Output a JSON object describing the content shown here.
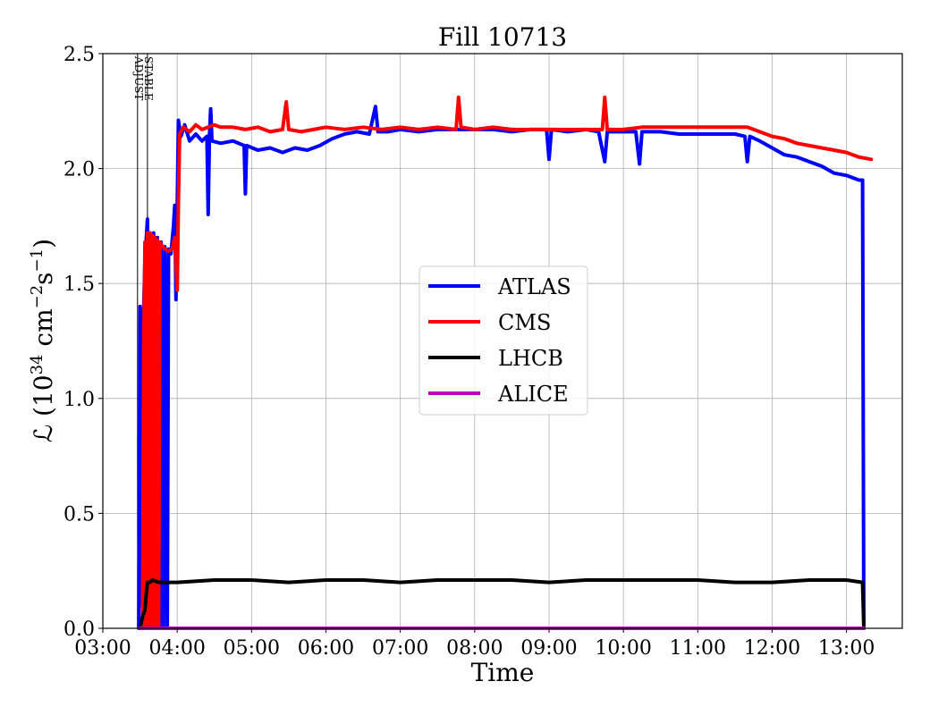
{
  "chart_data": {
    "type": "line",
    "title": "Fill 10713",
    "xlabel": "Time",
    "ylabel": "ℒ (10³⁴ cm⁻²s⁻¹)",
    "ylabel_parts": {
      "main": "ℒ (10",
      "exp1": "34",
      "mid": " cm",
      "exp2": "−2",
      "mid2": "s",
      "exp3": "−1",
      "end": ")"
    },
    "xlim": [
      "03:00",
      "13:45"
    ],
    "ylim": [
      0.0,
      2.5
    ],
    "x_ticks": [
      "03:00",
      "04:00",
      "05:00",
      "06:00",
      "07:00",
      "08:00",
      "09:00",
      "10:00",
      "11:00",
      "12:00",
      "13:00"
    ],
    "y_ticks": [
      "0.0",
      "0.5",
      "1.0",
      "1.5",
      "2.0",
      "2.5"
    ],
    "grid": true,
    "legend_position": "center-right",
    "annotations": [
      {
        "label": "ADJUST",
        "x": "03:28"
      },
      {
        "label": "STABLE",
        "x": "03:36"
      }
    ],
    "series": [
      {
        "name": "ATLAS",
        "color": "#0000ff",
        "points": [
          [
            "03:29",
            0.0
          ],
          [
            "03:30",
            1.4
          ],
          [
            "03:31",
            0.1
          ],
          [
            "03:32",
            1.2
          ],
          [
            "03:34",
            1.6
          ],
          [
            "03:36",
            1.78
          ],
          [
            "03:37",
            0.0
          ],
          [
            "03:38",
            1.72
          ],
          [
            "03:40",
            0.0
          ],
          [
            "03:41",
            1.72
          ],
          [
            "03:43",
            0.0
          ],
          [
            "03:44",
            1.7
          ],
          [
            "03:46",
            0.0
          ],
          [
            "03:47",
            1.68
          ],
          [
            "03:49",
            0.0
          ],
          [
            "03:50",
            1.66
          ],
          [
            "03:52",
            0.0
          ],
          [
            "03:53",
            1.65
          ],
          [
            "03:55",
            1.63
          ],
          [
            "03:57",
            1.75
          ],
          [
            "03:58",
            1.84
          ],
          [
            "03:59",
            1.43
          ],
          [
            "04:01",
            2.21
          ],
          [
            "04:03",
            2.14
          ],
          [
            "04:06",
            2.19
          ],
          [
            "04:10",
            2.12
          ],
          [
            "04:15",
            2.15
          ],
          [
            "04:20",
            2.12
          ],
          [
            "04:24",
            2.14
          ],
          [
            "04:25",
            1.8
          ],
          [
            "04:26",
            2.14
          ],
          [
            "04:27",
            2.26
          ],
          [
            "04:28",
            2.12
          ],
          [
            "04:35",
            2.11
          ],
          [
            "04:45",
            2.12
          ],
          [
            "04:54",
            2.1
          ],
          [
            "04:55",
            1.89
          ],
          [
            "04:56",
            2.1
          ],
          [
            "05:05",
            2.08
          ],
          [
            "05:15",
            2.09
          ],
          [
            "05:25",
            2.07
          ],
          [
            "05:35",
            2.09
          ],
          [
            "05:45",
            2.08
          ],
          [
            "05:55",
            2.1
          ],
          [
            "06:05",
            2.13
          ],
          [
            "06:15",
            2.15
          ],
          [
            "06:25",
            2.16
          ],
          [
            "06:35",
            2.15
          ],
          [
            "06:40",
            2.27
          ],
          [
            "06:42",
            2.16
          ],
          [
            "06:50",
            2.16
          ],
          [
            "07:00",
            2.17
          ],
          [
            "07:15",
            2.16
          ],
          [
            "07:30",
            2.17
          ],
          [
            "07:45",
            2.17
          ],
          [
            "08:00",
            2.17
          ],
          [
            "08:15",
            2.17
          ],
          [
            "08:30",
            2.16
          ],
          [
            "08:45",
            2.17
          ],
          [
            "08:58",
            2.17
          ],
          [
            "09:00",
            2.04
          ],
          [
            "09:02",
            2.17
          ],
          [
            "09:15",
            2.16
          ],
          [
            "09:30",
            2.17
          ],
          [
            "09:40",
            2.16
          ],
          [
            "09:45",
            2.03
          ],
          [
            "09:47",
            2.16
          ],
          [
            "10:00",
            2.16
          ],
          [
            "10:10",
            2.16
          ],
          [
            "10:13",
            2.02
          ],
          [
            "10:15",
            2.16
          ],
          [
            "10:30",
            2.16
          ],
          [
            "10:45",
            2.15
          ],
          [
            "11:00",
            2.15
          ],
          [
            "11:15",
            2.15
          ],
          [
            "11:30",
            2.15
          ],
          [
            "11:38",
            2.14
          ],
          [
            "11:40",
            2.03
          ],
          [
            "11:42",
            2.14
          ],
          [
            "11:50",
            2.12
          ],
          [
            "12:00",
            2.09
          ],
          [
            "12:10",
            2.06
          ],
          [
            "12:20",
            2.05
          ],
          [
            "12:30",
            2.03
          ],
          [
            "12:40",
            2.01
          ],
          [
            "12:50",
            1.98
          ],
          [
            "13:00",
            1.97
          ],
          [
            "13:10",
            1.95
          ],
          [
            "13:13",
            1.95
          ],
          [
            "13:14",
            0.0
          ]
        ]
      },
      {
        "name": "CMS",
        "color": "#ff0000",
        "points": [
          [
            "03:32",
            0.0
          ],
          [
            "03:33",
            1.2
          ],
          [
            "03:34",
            1.68
          ],
          [
            "03:35",
            0.0
          ],
          [
            "03:36",
            1.72
          ],
          [
            "03:37",
            0.0
          ],
          [
            "03:38",
            1.72
          ],
          [
            "03:39",
            0.0
          ],
          [
            "03:40",
            1.71
          ],
          [
            "03:41",
            0.0
          ],
          [
            "03:42",
            1.7
          ],
          [
            "03:43",
            0.0
          ],
          [
            "03:44",
            1.69
          ],
          [
            "03:45",
            0.0
          ],
          [
            "03:46",
            1.68
          ],
          [
            "03:47",
            1.67
          ],
          [
            "03:50",
            1.65
          ],
          [
            "03:53",
            1.64
          ],
          [
            "03:56",
            1.65
          ],
          [
            "03:58",
            1.7
          ],
          [
            "04:00",
            1.47
          ],
          [
            "04:01",
            1.85
          ],
          [
            "04:02",
            2.15
          ],
          [
            "04:05",
            2.18
          ],
          [
            "04:10",
            2.16
          ],
          [
            "04:15",
            2.19
          ],
          [
            "04:20",
            2.17
          ],
          [
            "04:25",
            2.18
          ],
          [
            "04:30",
            2.19
          ],
          [
            "04:35",
            2.18
          ],
          [
            "04:45",
            2.18
          ],
          [
            "04:55",
            2.17
          ],
          [
            "05:05",
            2.18
          ],
          [
            "05:15",
            2.16
          ],
          [
            "05:25",
            2.17
          ],
          [
            "05:28",
            2.29
          ],
          [
            "05:30",
            2.17
          ],
          [
            "05:40",
            2.16
          ],
          [
            "05:50",
            2.17
          ],
          [
            "06:00",
            2.18
          ],
          [
            "06:15",
            2.17
          ],
          [
            "06:30",
            2.18
          ],
          [
            "06:45",
            2.17
          ],
          [
            "07:00",
            2.18
          ],
          [
            "07:15",
            2.17
          ],
          [
            "07:30",
            2.18
          ],
          [
            "07:45",
            2.17
          ],
          [
            "07:47",
            2.31
          ],
          [
            "07:49",
            2.18
          ],
          [
            "08:00",
            2.17
          ],
          [
            "08:15",
            2.18
          ],
          [
            "08:30",
            2.17
          ],
          [
            "08:45",
            2.17
          ],
          [
            "09:00",
            2.17
          ],
          [
            "09:15",
            2.17
          ],
          [
            "09:30",
            2.17
          ],
          [
            "09:43",
            2.17
          ],
          [
            "09:45",
            2.31
          ],
          [
            "09:47",
            2.17
          ],
          [
            "10:00",
            2.17
          ],
          [
            "10:15",
            2.18
          ],
          [
            "10:30",
            2.18
          ],
          [
            "10:45",
            2.18
          ],
          [
            "11:00",
            2.18
          ],
          [
            "11:15",
            2.18
          ],
          [
            "11:30",
            2.18
          ],
          [
            "11:40",
            2.18
          ],
          [
            "11:50",
            2.16
          ],
          [
            "12:00",
            2.14
          ],
          [
            "12:10",
            2.13
          ],
          [
            "12:20",
            2.11
          ],
          [
            "12:30",
            2.1
          ],
          [
            "12:40",
            2.09
          ],
          [
            "12:50",
            2.08
          ],
          [
            "13:00",
            2.07
          ],
          [
            "13:10",
            2.05
          ],
          [
            "13:20",
            2.04
          ]
        ]
      },
      {
        "name": "LHCB",
        "color": "#000000",
        "points": [
          [
            "03:30",
            0.0
          ],
          [
            "03:32",
            0.05
          ],
          [
            "03:34",
            0.08
          ],
          [
            "03:35",
            0.15
          ],
          [
            "03:36",
            0.2
          ],
          [
            "03:38",
            0.2
          ],
          [
            "03:40",
            0.21
          ],
          [
            "03:45",
            0.2
          ],
          [
            "03:55",
            0.2
          ],
          [
            "04:00",
            0.2
          ],
          [
            "04:30",
            0.21
          ],
          [
            "05:00",
            0.21
          ],
          [
            "05:30",
            0.2
          ],
          [
            "06:00",
            0.21
          ],
          [
            "06:30",
            0.21
          ],
          [
            "07:00",
            0.2
          ],
          [
            "07:30",
            0.21
          ],
          [
            "08:00",
            0.21
          ],
          [
            "08:30",
            0.21
          ],
          [
            "09:00",
            0.2
          ],
          [
            "09:30",
            0.21
          ],
          [
            "10:00",
            0.21
          ],
          [
            "10:30",
            0.21
          ],
          [
            "11:00",
            0.21
          ],
          [
            "11:30",
            0.2
          ],
          [
            "12:00",
            0.2
          ],
          [
            "12:30",
            0.21
          ],
          [
            "13:00",
            0.21
          ],
          [
            "13:13",
            0.2
          ],
          [
            "13:14",
            0.0
          ]
        ]
      },
      {
        "name": "ALICE",
        "color": "#bf00bf",
        "points": [
          [
            "03:30",
            0.0
          ],
          [
            "13:14",
            0.0
          ]
        ]
      }
    ]
  }
}
